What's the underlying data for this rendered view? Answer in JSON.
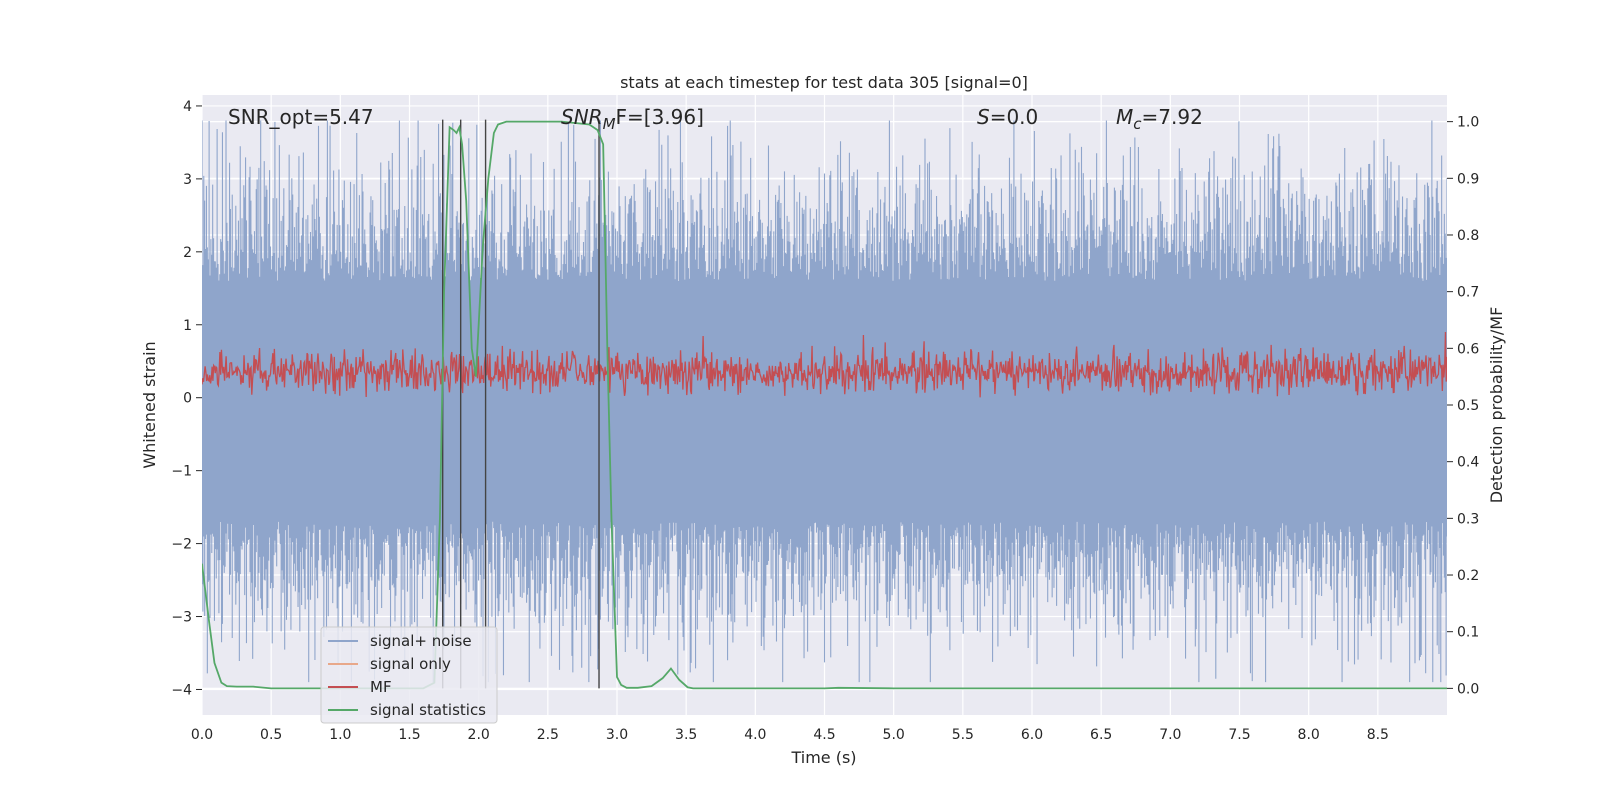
{
  "chart_data": {
    "type": "line",
    "title": "stats at each timestep for test data 305 [signal=0]",
    "xlabel": "Time (s)",
    "ylabel_left": "Whitened strain",
    "ylabel_right": "Detection probability/MF",
    "xlim": [
      0,
      9
    ],
    "ylim_left": [
      -4.35,
      4.15
    ],
    "ylim_right": [
      -0.047,
      1.047
    ],
    "x_ticks": [
      "0.0",
      "0.5",
      "1.0",
      "1.5",
      "2.0",
      "2.5",
      "3.0",
      "3.5",
      "4.0",
      "4.5",
      "5.0",
      "5.5",
      "6.0",
      "6.5",
      "7.0",
      "7.5",
      "8.0",
      "8.5"
    ],
    "y_left_ticks": [
      "−4",
      "−3",
      "−2",
      "−1",
      "0",
      "1",
      "2",
      "3",
      "4"
    ],
    "y_right_ticks": [
      "0.0",
      "0.1",
      "0.2",
      "0.3",
      "0.4",
      "0.5",
      "0.6",
      "0.7",
      "0.8",
      "0.9",
      "1.0"
    ],
    "grid": true,
    "legend_position": "lower-left",
    "annotations": {
      "snr_opt": "SNR_opt=5.47",
      "snr_mf_label": "SNR",
      "snr_mf_sub": "M",
      "snr_mf_rest": "F=[3.96]",
      "s_label": "S",
      "s_rest": "=0.0",
      "mc_label": "M",
      "mc_sub": "c",
      "mc_rest": "=7.92"
    },
    "vertical_lines_x": [
      1.74,
      1.87,
      2.05,
      2.87
    ],
    "series": [
      {
        "name": "signal+ noise",
        "color": "#8fa5cb",
        "axis": "left",
        "description_band": {
          "typical_low": -1.7,
          "typical_high": 1.6,
          "peak_low": -3.9,
          "peak_high": 3.8
        }
      },
      {
        "name": "signal only",
        "color": "#e8a88a",
        "axis": "left",
        "values": []
      },
      {
        "name": "MF",
        "color": "#c44e52",
        "axis": "left",
        "description_band": {
          "typical_low": 0.05,
          "typical_high": 0.65,
          "peak_high": 1.0
        }
      },
      {
        "name": "signal statistics",
        "color": "#55a868",
        "axis": "right",
        "x": [
          0.0,
          0.05,
          0.09,
          0.14,
          0.18,
          0.25,
          0.37,
          0.5,
          0.7,
          1.0,
          1.3,
          1.6,
          1.68,
          1.72,
          1.75,
          1.79,
          1.82,
          1.84,
          1.86,
          1.88,
          1.91,
          1.95,
          1.98,
          2.03,
          2.07,
          2.11,
          2.14,
          2.2,
          2.4,
          2.6,
          2.8,
          2.86,
          2.9,
          2.93,
          2.96,
          3.0,
          3.03,
          3.07,
          3.15,
          3.25,
          3.33,
          3.39,
          3.45,
          3.51,
          3.55,
          3.7,
          4.0,
          4.5,
          4.6,
          5.0,
          6.0,
          7.0,
          8.0,
          9.0
        ],
        "y": [
          0.22,
          0.12,
          0.045,
          0.01,
          0.004,
          0.003,
          0.003,
          0.0,
          0.0,
          0.0,
          0.0,
          0.0,
          0.01,
          0.3,
          0.7,
          0.99,
          0.985,
          0.98,
          0.99,
          0.96,
          0.86,
          0.6,
          0.55,
          0.78,
          0.9,
          0.98,
          0.995,
          1.0,
          1.0,
          1.0,
          0.995,
          0.985,
          0.96,
          0.6,
          0.3,
          0.02,
          0.006,
          0.001,
          0.001,
          0.004,
          0.018,
          0.035,
          0.015,
          0.002,
          0.0,
          0.0,
          0.0,
          0.0,
          0.001,
          0.0,
          0.0,
          0.0,
          0.0,
          0.0
        ]
      }
    ]
  }
}
